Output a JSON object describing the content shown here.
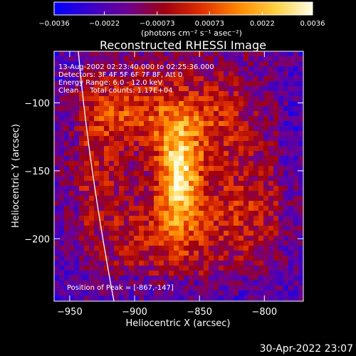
{
  "chart_data": {
    "type": "heatmap",
    "title": "Reconstructed RHESSI Image",
    "colorbar": {
      "ticks": [
        "-0.0036",
        "-0.0022",
        "-0.00073",
        "0.00073",
        "0.0022",
        "0.0036"
      ],
      "range": [
        -0.0036,
        0.0036
      ],
      "unit_label": "(photons cm⁻² s⁻¹ asec⁻²)",
      "colors": [
        "#0000ff",
        "#3c00c8",
        "#6e0090",
        "#a00010",
        "#e03000",
        "#ff8800",
        "#ffd040",
        "#ffffe6"
      ]
    },
    "info_lines": [
      "13-Aug-2002 02:23:40.000 to 02:25:36.000",
      "Detectors: 3F 4F 5F 6F 7F 8F, Att 0",
      "Energy Range: 6.0 - 12.0 keV",
      "Clean     Total counts: 1.17E+04"
    ],
    "peak_label": "Position of Peak = [-867,-147]",
    "peak": [
      -867,
      -147
    ],
    "xlabel": "Heliocentric X (arcsec)",
    "ylabel": "Heliocentric Y (arcsec)",
    "xlim": [
      -962,
      -770
    ],
    "ylim": [
      -246,
      -62
    ],
    "xticks": [
      -950,
      -900,
      -850,
      -800
    ],
    "yticks": [
      -100,
      -150,
      -200
    ],
    "xtick_labels": [
      "−950",
      "−900",
      "−850",
      "−800"
    ],
    "ytick_labels": [
      "−100",
      "−150",
      "−200"
    ],
    "limb_arc": true
  },
  "footer": {
    "timestamp": "30-Apr-2022 23:07"
  }
}
